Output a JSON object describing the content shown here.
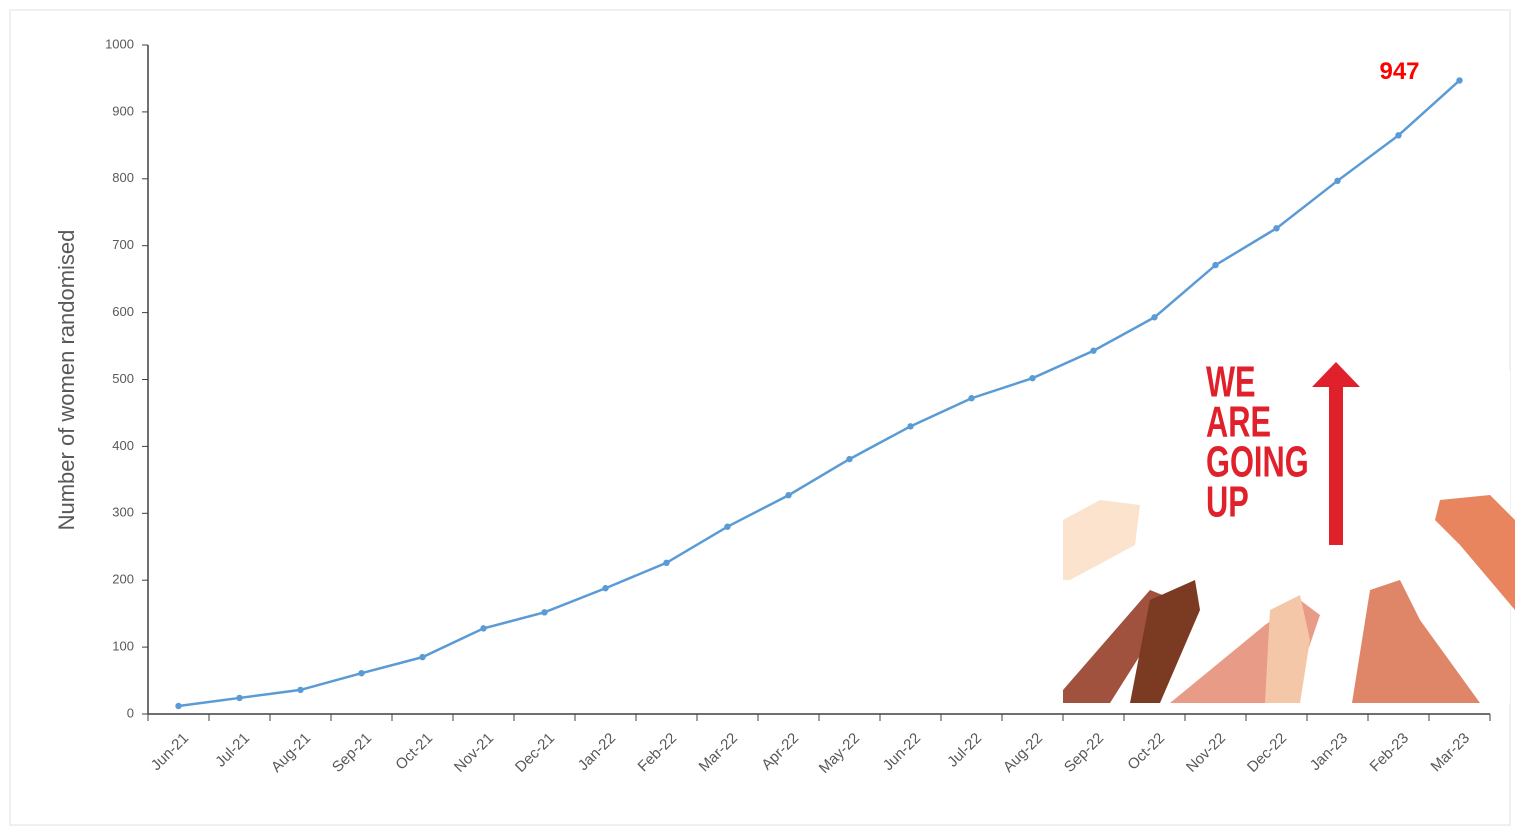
{
  "chart_data": {
    "type": "line",
    "y_label": "Number of women randomised",
    "categories": [
      "Jun-21",
      "Jul-21",
      "Aug-21",
      "Sep-21",
      "Oct-21",
      "Nov-21",
      "Dec-21",
      "Jan-22",
      "Feb-22",
      "Mar-22",
      "Apr-22",
      "May-22",
      "Jun-22",
      "Jul-22",
      "Aug-22",
      "Sep-22",
      "Oct-22",
      "Nov-22",
      "Dec-22",
      "Jan-23",
      "Feb-23",
      "Mar-23"
    ],
    "series": [
      {
        "color": "#5b9bd5",
        "values": [
          12,
          24,
          36,
          61,
          85,
          128,
          152,
          188,
          226,
          280,
          327,
          381,
          430,
          472,
          502,
          543,
          593,
          671,
          726,
          797,
          865,
          947
        ]
      }
    ],
    "ylim": [
      0,
      1000
    ],
    "yticks": [
      0,
      100,
      200,
      300,
      400,
      500,
      600,
      700,
      800,
      900,
      1000
    ],
    "grid": false,
    "badge_text": [
      "WE",
      "ARE",
      "GOING",
      "UP"
    ]
  }
}
